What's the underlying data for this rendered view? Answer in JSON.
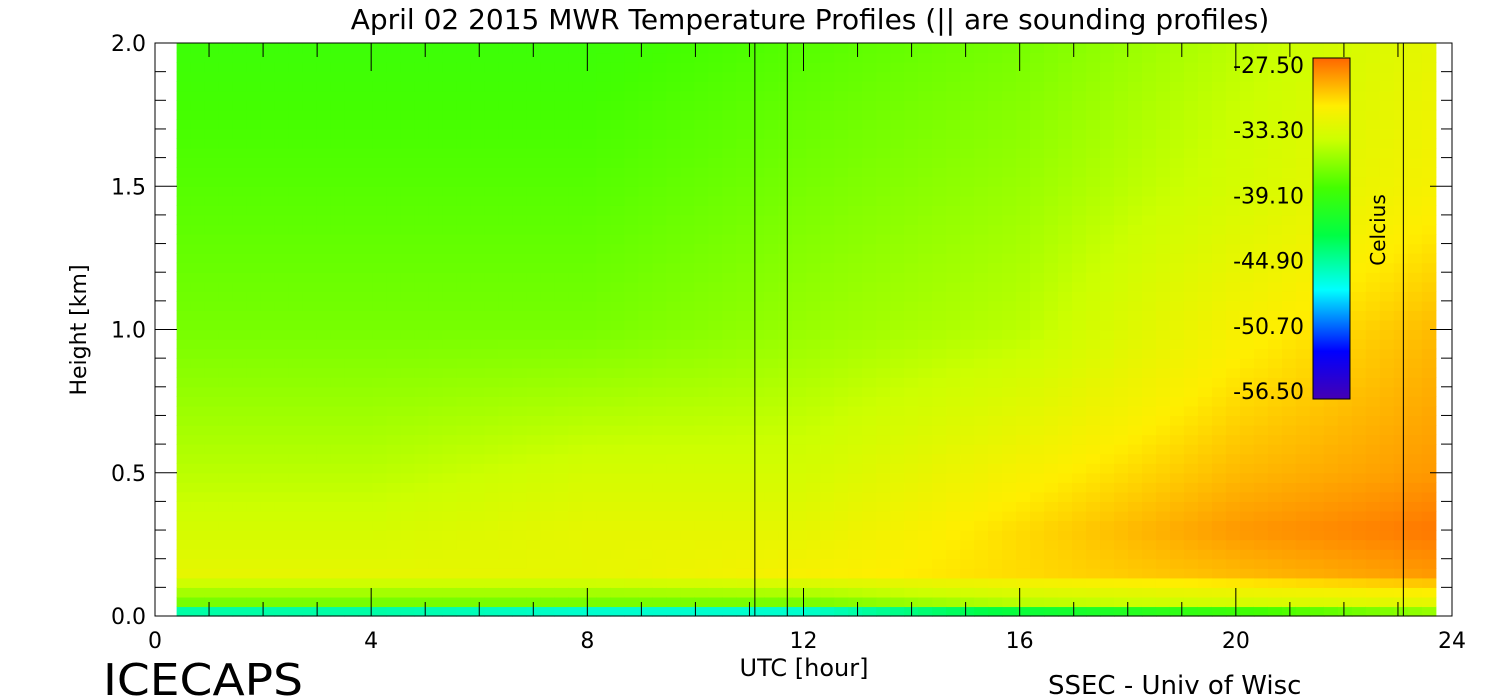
{
  "chart_data": {
    "type": "heatmap",
    "title": "April 02 2015 MWR Temperature Profiles (|| are sounding profiles)",
    "xlabel": "UTC [hour]",
    "ylabel": "Height [km]",
    "xlim": [
      0,
      24
    ],
    "ylim": [
      0.0,
      2.0
    ],
    "x_ticks": [
      "0",
      "4",
      "8",
      "12",
      "16",
      "20",
      "24"
    ],
    "y_ticks": [
      "0.0",
      "0.5",
      "1.0",
      "1.5",
      "2.0"
    ],
    "data_x_range": [
      0.4,
      23.7
    ],
    "sounding_times": [
      11.1,
      11.7,
      23.1
    ],
    "colorbar": {
      "label": "Celcius",
      "ticks": [
        "-27.50",
        "-33.30",
        "-39.10",
        "-44.90",
        "-50.70",
        "-56.50"
      ],
      "range": [
        -56.5,
        -27.5
      ]
    },
    "temperature_field": {
      "description_units": "Celsius",
      "hours": [
        0.4,
        4,
        8,
        12,
        16,
        20,
        23.7
      ],
      "heights_km": [
        0.02,
        0.05,
        0.15,
        0.3,
        0.5,
        1.0,
        1.5,
        2.0
      ],
      "values": [
        [
          -45,
          -45,
          -46,
          -46,
          -42,
          -39,
          -36
        ],
        [
          -37,
          -37,
          -37,
          -37,
          -35,
          -34,
          -33
        ],
        [
          -33,
          -33,
          -33,
          -32,
          -31,
          -30,
          -29
        ],
        [
          -34,
          -34,
          -33,
          -33,
          -31,
          -29,
          -28
        ],
        [
          -35,
          -35,
          -34,
          -34,
          -32,
          -30,
          -29
        ],
        [
          -37,
          -37,
          -37,
          -36,
          -35,
          -32,
          -30
        ],
        [
          -38,
          -38,
          -38,
          -37,
          -36,
          -34,
          -32
        ],
        [
          -39,
          -39,
          -39,
          -38,
          -37,
          -35,
          -33
        ]
      ]
    }
  },
  "footer": {
    "left_logo": "ICECAPS",
    "right_credit": "SSEC - Univ of Wisc"
  }
}
